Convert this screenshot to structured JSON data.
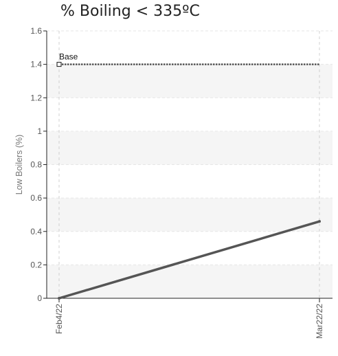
{
  "chart_data": {
    "type": "line",
    "title": "% Boiling < 335ºC",
    "ylabel": "Low Boilers (%)",
    "xlabel": "",
    "categories": [
      "Feb4/22",
      "Mar22/22"
    ],
    "ylim": [
      0,
      1.6
    ],
    "yticks": [
      "0",
      "0.2",
      "0.4",
      "0.6",
      "0.8",
      "1",
      "1.2",
      "1.4",
      "1.6"
    ],
    "grid": true,
    "series": [
      {
        "values": [
          0,
          0.46
        ],
        "color": "#555555"
      }
    ],
    "reference_line": {
      "label": "Base",
      "value": 1.4,
      "style": "dotted",
      "color": "#555555"
    },
    "band_colors": [
      "#f5f5f5",
      "#ffffff"
    ]
  }
}
